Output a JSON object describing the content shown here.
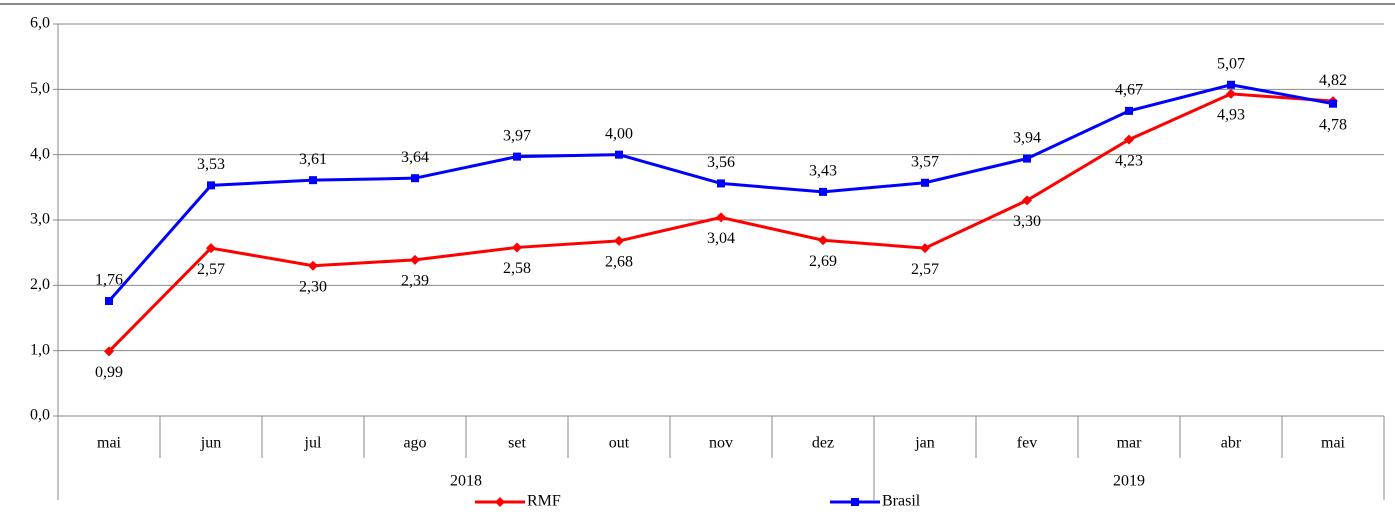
{
  "chart_data": {
    "type": "line",
    "categories": [
      "mai",
      "jun",
      "jul",
      "ago",
      "set",
      "out",
      "nov",
      "dez",
      "jan",
      "fev",
      "mar",
      "abr",
      "mai"
    ],
    "year_labels": [
      "2018",
      null,
      null,
      null,
      null,
      null,
      null,
      null,
      "2019",
      null,
      null,
      null,
      null
    ],
    "series": [
      {
        "name": "RMF",
        "color": "#ff0000",
        "values": [
          0.99,
          2.57,
          2.3,
          2.39,
          2.58,
          2.68,
          3.04,
          2.69,
          2.57,
          3.3,
          4.23,
          4.93,
          4.82
        ],
        "value_labels": [
          "0,99",
          "2,57",
          "2,30",
          "2,39",
          "2,58",
          "2,68",
          "3,04",
          "2,69",
          "2,57",
          "3,30",
          "4,23",
          "4,93",
          "4,82"
        ]
      },
      {
        "name": "Brasil",
        "color": "#0000ff",
        "values": [
          1.76,
          3.53,
          3.61,
          3.64,
          3.97,
          4.0,
          3.56,
          3.43,
          3.57,
          3.94,
          4.67,
          5.07,
          4.78
        ],
        "value_labels": [
          "1,76",
          "3,53",
          "3,61",
          "3,64",
          "3,97",
          "4,00",
          "3,56",
          "3,43",
          "3,57",
          "3,94",
          "4,67",
          "5,07",
          "4,78"
        ]
      }
    ],
    "ylim": [
      0,
      6
    ],
    "yticks": [
      {
        "value": 0,
        "label": "0,0"
      },
      {
        "value": 1,
        "label": "1,0"
      },
      {
        "value": 2,
        "label": "2,0"
      },
      {
        "value": 3,
        "label": "3,0"
      },
      {
        "value": 4,
        "label": "4,0"
      },
      {
        "value": 5,
        "label": "5,0"
      },
      {
        "value": 6,
        "label": "6,0"
      }
    ],
    "grid": true
  }
}
